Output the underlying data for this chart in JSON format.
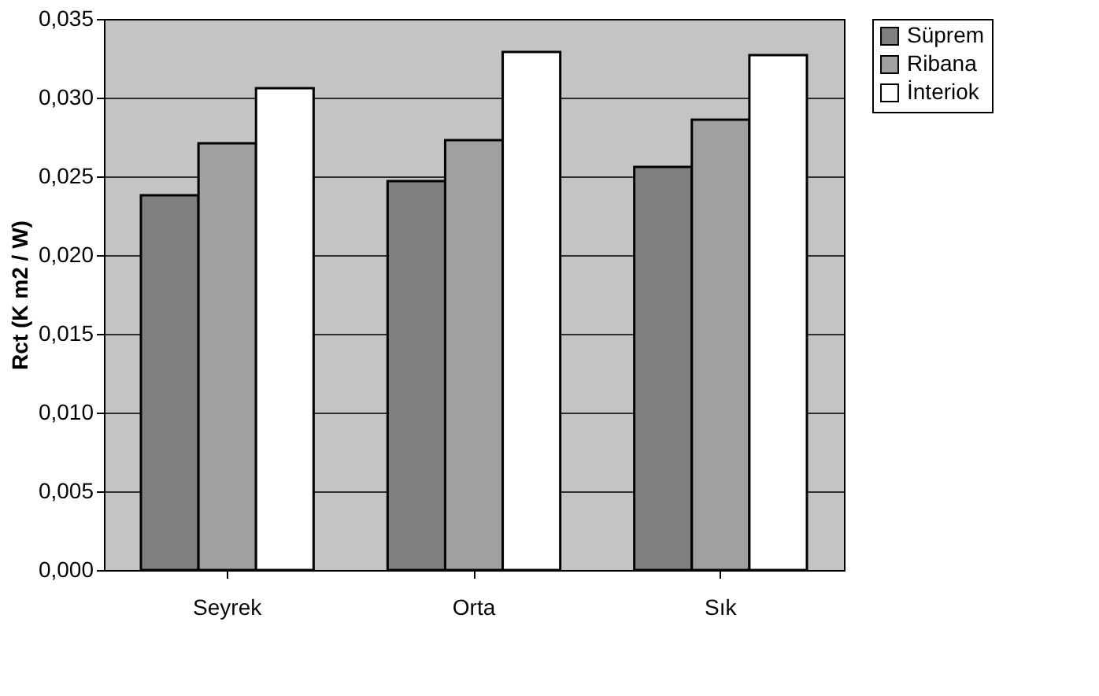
{
  "chart_data": {
    "type": "bar",
    "ylabel": "Rct (K m2 / W)",
    "categories": [
      "Seyrek",
      "Orta",
      "Sık"
    ],
    "series": [
      {
        "name": "Süprem",
        "color": "#7f7f7f",
        "values": [
          0.0238,
          0.0247,
          0.0256
        ]
      },
      {
        "name": "Ribana",
        "color": "#a0a0a0",
        "values": [
          0.0271,
          0.0273,
          0.0286
        ]
      },
      {
        "name": "İnteriok",
        "color": "#ffffff",
        "values": [
          0.0306,
          0.0329,
          0.0327
        ]
      }
    ],
    "ylim": [
      0,
      0.035
    ],
    "yticks": [
      {
        "value": 0,
        "label": "0,000"
      },
      {
        "value": 0.005,
        "label": "0,005"
      },
      {
        "value": 0.01,
        "label": "0,010"
      },
      {
        "value": 0.015,
        "label": "0,015"
      },
      {
        "value": 0.02,
        "label": "0,020"
      },
      {
        "value": 0.025,
        "label": "0,025"
      },
      {
        "value": 0.03,
        "label": "0,030"
      },
      {
        "value": 0.035,
        "label": "0,035"
      }
    ],
    "grid": "y",
    "legend": "right"
  }
}
